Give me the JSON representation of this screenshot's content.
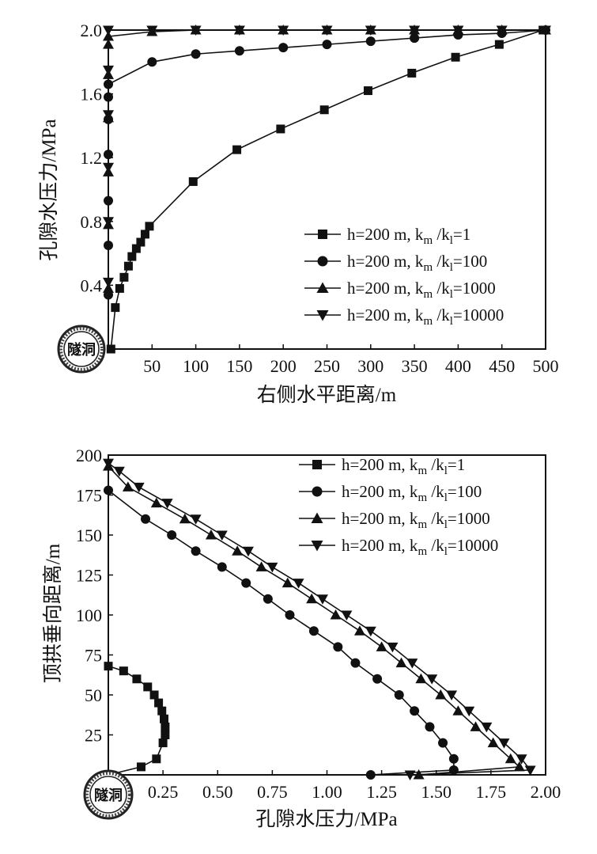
{
  "chart_data": [
    {
      "type": "line",
      "xlabel": "右侧水平距离/m",
      "ylabel": "孔隙水压力/MPa",
      "xlim": [
        0,
        500
      ],
      "ylim": [
        0,
        2.0
      ],
      "x_ticks": [
        "50",
        "100",
        "150",
        "200",
        "250",
        "300",
        "350",
        "400",
        "450",
        "500"
      ],
      "y_ticks": [
        "0.4",
        "0.8",
        "1.2",
        "1.6",
        "2.0"
      ],
      "grid": false,
      "legend_position": "center-right",
      "annotation": "隧洞",
      "legend_prefix": "h=200 m, k",
      "legend_sub_m": "m",
      "legend_slash": " /k",
      "legend_sub_l": "l",
      "series": [
        {
          "legend_value": "=1",
          "marker": "square",
          "x": [
            3,
            8,
            13,
            18,
            23,
            27,
            32,
            37,
            42,
            47,
            97,
            147,
            197,
            247,
            297,
            347,
            397,
            447,
            497
          ],
          "y": [
            0.0,
            0.26,
            0.38,
            0.45,
            0.52,
            0.58,
            0.63,
            0.67,
            0.72,
            0.77,
            1.05,
            1.25,
            1.38,
            1.5,
            1.62,
            1.73,
            1.83,
            1.91,
            2.0
          ]
        },
        {
          "legend_value": "=100",
          "marker": "circle",
          "x": [
            0,
            0,
            0,
            0,
            0,
            0,
            0,
            50,
            100,
            150,
            200,
            250,
            300,
            350,
            400,
            450,
            500
          ],
          "y": [
            0.34,
            0.65,
            0.93,
            1.22,
            1.44,
            1.58,
            1.66,
            1.8,
            1.85,
            1.87,
            1.89,
            1.91,
            1.93,
            1.95,
            1.97,
            1.98,
            2.0
          ]
        },
        {
          "legend_value": "=1000",
          "marker": "triangle-up",
          "x": [
            0,
            0,
            0,
            0,
            0,
            0,
            0,
            50,
            100,
            150,
            200,
            250,
            300,
            350,
            400,
            450,
            500
          ],
          "y": [
            0.38,
            0.78,
            1.11,
            1.45,
            1.72,
            1.91,
            1.96,
            1.99,
            2.0,
            2.0,
            2.0,
            2.0,
            2.0,
            2.0,
            2.0,
            2.0,
            2.0
          ]
        },
        {
          "legend_value": "=10000",
          "marker": "triangle-down",
          "x": [
            0,
            0,
            0,
            0,
            0,
            0,
            50,
            100,
            150,
            200,
            250,
            300,
            350,
            400,
            450,
            500
          ],
          "y": [
            0.42,
            0.8,
            1.14,
            1.47,
            1.75,
            2.0,
            2.0,
            2.0,
            2.0,
            2.0,
            2.0,
            2.0,
            2.0,
            2.0,
            2.0,
            2.0
          ]
        }
      ]
    },
    {
      "type": "line",
      "xlabel": "孔隙水压力/MPa",
      "ylabel": "顶拱垂向距离/m",
      "xlim": [
        0,
        2.0
      ],
      "ylim": [
        0,
        200
      ],
      "x_ticks": [
        "0.25",
        "0.50",
        "0.75",
        "1.00",
        "1.25",
        "1.50",
        "1.75",
        "2.00"
      ],
      "y_ticks": [
        "25",
        "50",
        "75",
        "100",
        "125",
        "150",
        "175",
        "200"
      ],
      "grid": false,
      "legend_position": "top-right",
      "annotation": "隧洞",
      "legend_prefix": "h=200 m, k",
      "legend_sub_m": "m",
      "legend_slash": " /k",
      "legend_sub_l": "l",
      "series": [
        {
          "legend_value": "=1",
          "marker": "square",
          "x": [
            0.0,
            0.15,
            0.22,
            0.25,
            0.26,
            0.26,
            0.255,
            0.245,
            0.23,
            0.21,
            0.18,
            0.13,
            0.07,
            0.0
          ],
          "y": [
            0,
            5,
            10,
            20,
            25,
            30,
            35,
            40,
            45,
            50,
            55,
            60,
            65,
            68
          ]
        },
        {
          "legend_value": "=100",
          "marker": "circle",
          "x": [
            1.2,
            1.58,
            1.58,
            1.53,
            1.47,
            1.4,
            1.33,
            1.23,
            1.13,
            1.05,
            0.94,
            0.83,
            0.73,
            0.63,
            0.52,
            0.4,
            0.29,
            0.17,
            0.0
          ],
          "y": [
            0,
            3,
            10,
            20,
            30,
            40,
            50,
            60,
            70,
            80,
            90,
            100,
            110,
            120,
            130,
            140,
            150,
            160,
            178
          ]
        },
        {
          "legend_value": "=1000",
          "marker": "triangle-up",
          "x": [
            1.42,
            1.88,
            1.84,
            1.76,
            1.68,
            1.6,
            1.52,
            1.43,
            1.34,
            1.25,
            1.15,
            1.04,
            0.93,
            0.82,
            0.7,
            0.59,
            0.47,
            0.35,
            0.22,
            0.09,
            0.0
          ],
          "y": [
            0,
            5,
            10,
            20,
            30,
            40,
            50,
            60,
            70,
            80,
            90,
            100,
            110,
            120,
            130,
            140,
            150,
            160,
            170,
            180,
            193
          ]
        },
        {
          "legend_value": "=10000",
          "marker": "triangle-down",
          "x": [
            1.38,
            1.93,
            1.89,
            1.81,
            1.73,
            1.65,
            1.57,
            1.48,
            1.39,
            1.3,
            1.2,
            1.09,
            0.98,
            0.87,
            0.75,
            0.64,
            0.52,
            0.4,
            0.27,
            0.14,
            0.05,
            0.0
          ],
          "y": [
            0,
            3,
            10,
            20,
            30,
            40,
            50,
            60,
            70,
            80,
            90,
            100,
            110,
            120,
            130,
            140,
            150,
            160,
            170,
            180,
            190,
            195
          ]
        }
      ]
    }
  ]
}
